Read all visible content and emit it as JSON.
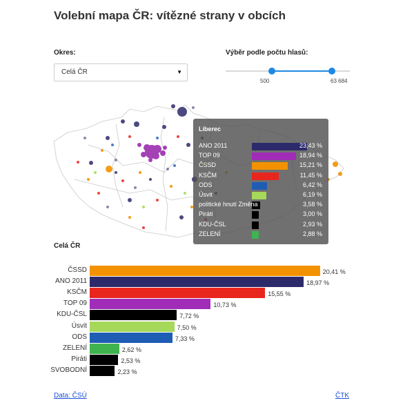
{
  "title": "Volební mapa ČR: vítězné strany v obcích",
  "okres": {
    "label": "Okres:",
    "selected": "Celá ČR"
  },
  "slider": {
    "label": "Výběr podle počtu hlasů:",
    "min_value": "500",
    "max_value": "63 684"
  },
  "tooltip": {
    "title": "Liberec",
    "rows": [
      {
        "name": "ANO 2011",
        "value": "23,43 %",
        "pct": 23.43,
        "color": "#2d2a6b"
      },
      {
        "name": "TOP 09",
        "value": "18,94 %",
        "pct": 18.94,
        "color": "#a02cb8"
      },
      {
        "name": "ČSSD",
        "value": "15,21 %",
        "pct": 15.21,
        "color": "#f39200"
      },
      {
        "name": "KSČM",
        "value": "11,45 %",
        "pct": 11.45,
        "color": "#e8261e"
      },
      {
        "name": "ODS",
        "value": "6,42 %",
        "pct": 6.42,
        "color": "#1f5db5"
      },
      {
        "name": "Úsvit",
        "value": "6,19 %",
        "pct": 6.19,
        "color": "#a6d85a"
      },
      {
        "name": "politické hnutí Změna",
        "value": "3,58 %",
        "pct": 3.58,
        "color": "#000000"
      },
      {
        "name": "Piráti",
        "value": "3,00 %",
        "pct": 3.0,
        "color": "#000000"
      },
      {
        "name": "KDU-ČSL",
        "value": "2,93 %",
        "pct": 2.93,
        "color": "#000000"
      },
      {
        "name": "ZELENÍ",
        "value": "2,88 %",
        "pct": 2.88,
        "color": "#3fb34f"
      }
    ]
  },
  "section_title": "Celá ČR",
  "chart_data": {
    "type": "bar",
    "orientation": "horizontal",
    "categories": [
      "ČSSD",
      "ANO 2011",
      "KSČM",
      "TOP 09",
      "KDU-ČSL",
      "Úsvit",
      "ODS",
      "ZELENÍ",
      "Piráti",
      "SVOBODNÍ"
    ],
    "values": [
      20.41,
      18.97,
      15.55,
      10.73,
      7.72,
      7.5,
      7.33,
      2.62,
      2.53,
      2.23
    ],
    "value_labels": [
      "20,41 %",
      "18,97 %",
      "15,55 %",
      "10,73 %",
      "7,72 %",
      "7,50 %",
      "7,33 %",
      "2,62 %",
      "2,53 %",
      "2,23 %"
    ],
    "colors": [
      "#f39200",
      "#2d2a6b",
      "#e8261e",
      "#a02cb8",
      "#000000",
      "#a6d85a",
      "#1f5db5",
      "#3fb34f",
      "#000000",
      "#000000"
    ]
  },
  "footer": {
    "source_link": "Data: ČSÚ",
    "agency_link": "ČTK"
  },
  "colors": {
    "accent": "#1e88e5",
    "link": "#1a4fd6"
  }
}
